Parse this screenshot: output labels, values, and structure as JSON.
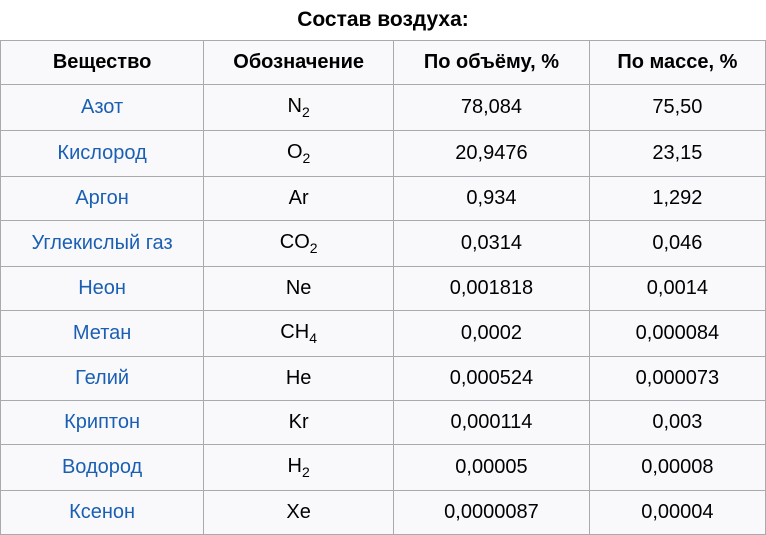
{
  "title": "Состав воздуха:",
  "headers": {
    "substance": "Вещество",
    "symbol": "Обозначение",
    "by_volume": "По объёму, %",
    "by_mass": "По массе, %"
  },
  "rows": [
    {
      "substance": "Азот",
      "symbol": "N",
      "subscript": "2",
      "by_volume": "78,084",
      "by_mass": "75,50"
    },
    {
      "substance": "Кислород",
      "symbol": "O",
      "subscript": "2",
      "by_volume": "20,9476",
      "by_mass": "23,15"
    },
    {
      "substance": "Аргон",
      "symbol": "Ar",
      "subscript": "",
      "by_volume": "0,934",
      "by_mass": "1,292"
    },
    {
      "substance": "Углекислый газ",
      "symbol": "CO",
      "subscript": "2",
      "by_volume": "0,0314",
      "by_mass": "0,046"
    },
    {
      "substance": "Неон",
      "symbol": "Ne",
      "subscript": "",
      "by_volume": "0,001818",
      "by_mass": "0,0014"
    },
    {
      "substance": "Метан",
      "symbol": "CH",
      "subscript": "4",
      "by_volume": "0,0002",
      "by_mass": "0,000084"
    },
    {
      "substance": "Гелий",
      "symbol": "He",
      "subscript": "",
      "by_volume": "0,000524",
      "by_mass": "0,000073"
    },
    {
      "substance": "Криптон",
      "symbol": "Kr",
      "subscript": "",
      "by_volume": "0,000114",
      "by_mass": "0,003"
    },
    {
      "substance": "Водород",
      "symbol": "H",
      "subscript": "2",
      "by_volume": "0,00005",
      "by_mass": "0,00008"
    },
    {
      "substance": "Ксенон",
      "symbol": "Xe",
      "subscript": "",
      "by_volume": "0,0000087",
      "by_mass": "0,00004"
    }
  ],
  "colors": {
    "link_color": "#1a5fb4",
    "text_color": "#000000",
    "border_color": "#a9a9b0",
    "bg_color": "#f9f9fb"
  }
}
